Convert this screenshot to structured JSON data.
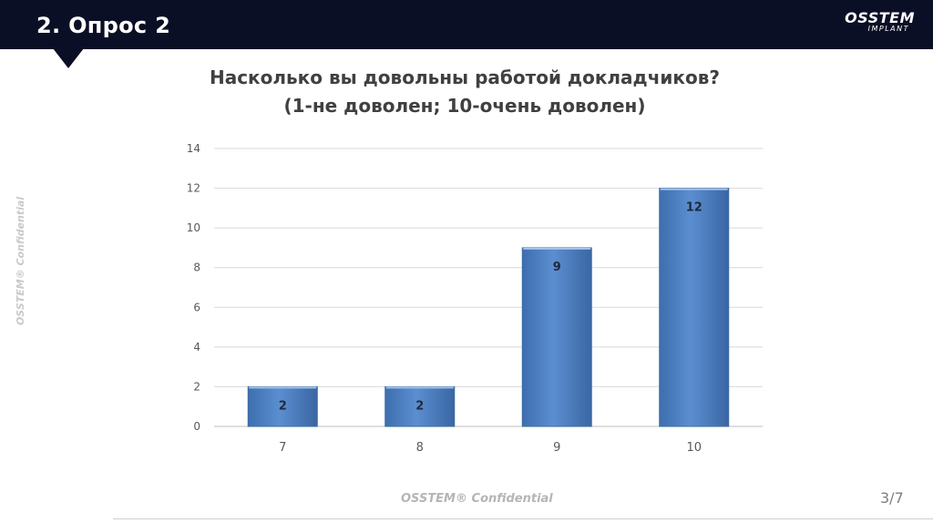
{
  "header": {
    "title": "2. Опрос 2",
    "logo_brand": "OSSTEM",
    "logo_sub": "IMPLANT"
  },
  "watermark": {
    "text": "OSSTEM® Confidential"
  },
  "page_number": "3/7",
  "colors": {
    "header_bg": "#0b0f26",
    "bar_fill": "#4f81bd",
    "bar_edge": "#3a6aa5",
    "grid": "#d9d9d9",
    "text_dark": "#404040",
    "tick_text": "#595959"
  },
  "chart_data": {
    "type": "bar",
    "title_lines": [
      "Насколько вы довольны работой докладчиков?",
      "(1-не доволен; 10-очень доволен)"
    ],
    "categories": [
      "7",
      "8",
      "9",
      "10"
    ],
    "values": [
      2,
      2,
      9,
      12
    ],
    "data_labels": [
      "2",
      "2",
      "9",
      "12"
    ],
    "ylim": [
      0,
      14
    ],
    "yticks": [
      "0",
      "2",
      "4",
      "6",
      "8",
      "10",
      "12",
      "14"
    ],
    "grid": true,
    "legend": "none"
  }
}
